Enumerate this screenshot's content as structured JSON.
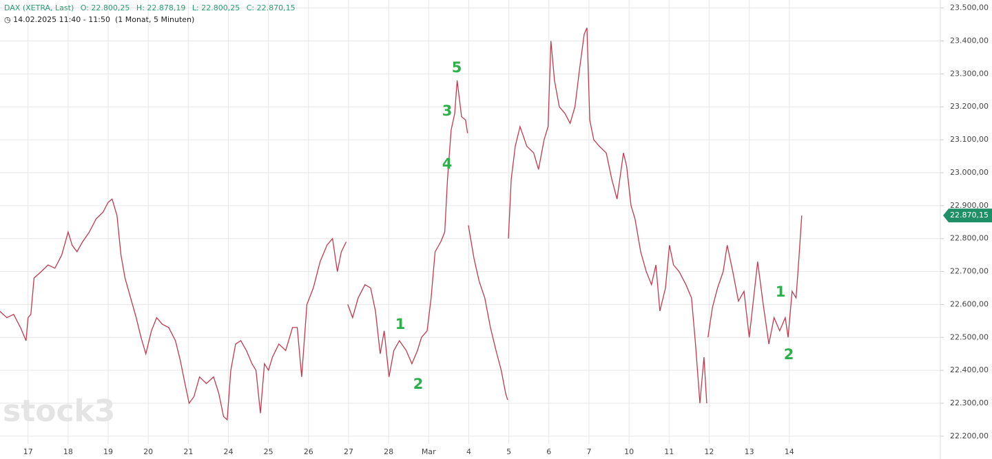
{
  "chart_data": {
    "type": "line",
    "title": "DAX (XETRA, Last)",
    "ohlc": [
      "O: 22.800,25",
      "H: 22.878,19",
      "L: 22.800,25",
      "C: 22.870,15"
    ],
    "subtitle": "14.02.2025 11:40 - 11:50",
    "period": "(1 Monat, 5 Minuten)",
    "watermark": "stock3",
    "last_price": {
      "value": 22870.15,
      "label": "22.870,15"
    },
    "annotations": [
      "1",
      "2",
      "3",
      "4",
      "5",
      "1",
      "2"
    ],
    "color": "#c2384c",
    "last_color": "#1f8f68",
    "annotation_color": "#2db04b",
    "grid": true,
    "xlim": [
      -0.7,
      22.77
    ],
    "ylim": [
      22176.8,
      23524.3
    ],
    "xticks": [
      {
        "value": 0,
        "label": "17"
      },
      {
        "value": 1,
        "label": "18"
      },
      {
        "value": 2,
        "label": "19"
      },
      {
        "value": 3,
        "label": "20"
      },
      {
        "value": 4,
        "label": "21"
      },
      {
        "value": 5,
        "label": "24"
      },
      {
        "value": 6,
        "label": "25"
      },
      {
        "value": 7,
        "label": "26"
      },
      {
        "value": 8,
        "label": "27"
      },
      {
        "value": 9,
        "label": "28"
      },
      {
        "value": 10,
        "label": "Mar"
      },
      {
        "value": 11,
        "label": "4"
      },
      {
        "value": 12,
        "label": "5"
      },
      {
        "value": 13,
        "label": "6"
      },
      {
        "value": 14,
        "label": "7"
      },
      {
        "value": 15,
        "label": "10"
      },
      {
        "value": 16,
        "label": "11"
      },
      {
        "value": 17,
        "label": "12"
      },
      {
        "value": 18,
        "label": "13"
      },
      {
        "value": 19,
        "label": "14"
      }
    ],
    "yticks": [
      {
        "value": 22200,
        "label": "22.200,00"
      },
      {
        "value": 22300,
        "label": "22.300,00"
      },
      {
        "value": 22400,
        "label": "22.400,00"
      },
      {
        "value": 22500,
        "label": "22.500,00"
      },
      {
        "value": 22600,
        "label": "22.600,00"
      },
      {
        "value": 22700,
        "label": "22.700,00"
      },
      {
        "value": 22800,
        "label": "22.800,00"
      },
      {
        "value": 22900,
        "label": "22.900,00"
      },
      {
        "value": 23000,
        "label": "23.000,00"
      },
      {
        "value": 23100,
        "label": "23.100,00"
      },
      {
        "value": 23200,
        "label": "23.200,00"
      },
      {
        "value": 23300,
        "label": "23.300,00"
      },
      {
        "value": 23400,
        "label": "23.400,00"
      },
      {
        "value": 23500,
        "label": "23.500,00"
      }
    ],
    "x": [
      -0.71,
      -0.53,
      -0.36,
      -0.19,
      -0.05,
      0,
      0.07,
      0.15,
      0.33,
      0.5,
      0.67,
      0.84,
      1,
      1.1,
      1.22,
      1.36,
      1.53,
      1.7,
      1.87,
      2,
      2.1,
      2.22,
      2.32,
      2.42,
      2.56,
      2.7,
      2.82,
      2.94,
      3.08,
      3.21,
      3.35,
      3.51,
      3.68,
      3.8,
      3.9,
      4.02,
      4.14,
      4.28,
      4.45,
      4.63,
      4.76,
      4.88,
      4.97,
      5.06,
      5.18,
      5.31,
      5.45,
      5.59,
      5.69,
      5.8,
      5.9,
      6,
      6.1,
      6.26,
      6.43,
      6.6,
      6.72,
      6.83,
      6.96,
      7.12,
      7.29,
      7.46,
      7.6,
      7.72,
      7.82,
      7.94,
      7.96,
      7.98,
      8.1,
      8.24,
      8.41,
      8.55,
      8.67,
      8.79,
      8.89,
      9.01,
      9.13,
      9.27,
      9.44,
      9.58,
      9.72,
      9.82,
      9.96,
      10.06,
      10.16,
      10.3,
      10.4,
      10.47,
      10.56,
      10.65,
      10.71,
      10.82,
      10.92,
      10.97,
      10.98,
      10.99,
      11.13,
      11.26,
      11.4,
      11.54,
      11.68,
      11.81,
      11.92,
      11.97,
      11.98,
      11.99,
      12.06,
      12.16,
      12.28,
      12.45,
      12.62,
      12.74,
      12.88,
      12.98,
      13.05,
      13.14,
      13.26,
      13.4,
      13.53,
      13.65,
      13.77,
      13.88,
      13.95,
      14.02,
      14.12,
      14.26,
      14.43,
      14.57,
      14.7,
      14.86,
      14.94,
      15.05,
      15.15,
      15.29,
      15.43,
      15.56,
      15.67,
      15.77,
      15.91,
      16.01,
      16.11,
      16.25,
      16.42,
      16.56,
      16.66,
      16.77,
      16.87,
      16.94,
      16.95,
      16.97,
      17.08,
      17.21,
      17.35,
      17.45,
      17.59,
      17.73,
      17.87,
      18,
      18.11,
      18.21,
      18.35,
      18.49,
      18.62,
      18.76,
      18.9,
      18.97,
      19.07,
      19.17,
      19.24,
      19.31
    ],
    "values": [
      22580,
      22560,
      22570,
      22530,
      22490,
      22560,
      22570,
      22680,
      22700,
      22720,
      22710,
      22750,
      22820,
      22780,
      22760,
      22790,
      22820,
      22860,
      22880,
      22910,
      22920,
      22870,
      22750,
      22680,
      22620,
      22560,
      22500,
      22450,
      22520,
      22560,
      22540,
      22530,
      22490,
      22430,
      22370,
      22300,
      22320,
      22380,
      22360,
      22380,
      22330,
      22260,
      22250,
      22400,
      22480,
      22490,
      22460,
      22420,
      22400,
      22270,
      22420,
      22400,
      22440,
      22480,
      22460,
      22530,
      22530,
      22380,
      22600,
      22650,
      22730,
      22780,
      22800,
      22700,
      22760,
      22790,
      null,
      22600,
      22560,
      22620,
      22660,
      22650,
      22580,
      22450,
      22520,
      22380,
      22460,
      22490,
      22460,
      22420,
      22460,
      22500,
      22520,
      22620,
      22760,
      22790,
      22820,
      22980,
      23130,
      23180,
      23280,
      23170,
      23160,
      23120,
      null,
      22840,
      22740,
      22670,
      22620,
      22530,
      22460,
      22400,
      22330,
      22310,
      null,
      22800,
      22980,
      23080,
      23140,
      23080,
      23060,
      23010,
      23100,
      23140,
      23400,
      23280,
      23200,
      23180,
      23150,
      23200,
      23320,
      23420,
      23440,
      23160,
      23100,
      23080,
      23060,
      22980,
      22920,
      23060,
      23020,
      22900,
      22860,
      22760,
      22700,
      22660,
      22720,
      22580,
      22650,
      22780,
      22720,
      22700,
      22660,
      22620,
      22480,
      22300,
      22440,
      22300,
      null,
      22500,
      22590,
      22650,
      22700,
      22780,
      22700,
      22610,
      22640,
      22500,
      22620,
      22730,
      22600,
      22480,
      22560,
      22520,
      22560,
      22500,
      22640,
      22620,
      22740,
      22870
    ]
  }
}
